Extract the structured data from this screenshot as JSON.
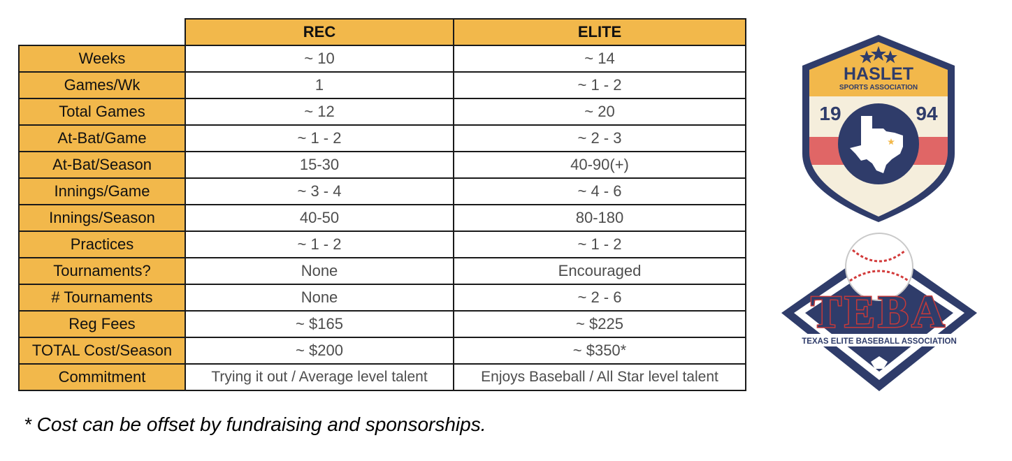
{
  "table": {
    "columns": [
      "REC",
      "ELITE"
    ],
    "rows": [
      {
        "label": "Weeks",
        "rec": "~ 10",
        "elite": "~ 14"
      },
      {
        "label": "Games/Wk",
        "rec": "1",
        "elite": "~ 1 - 2"
      },
      {
        "label": "Total Games",
        "rec": "~ 12",
        "elite": "~ 20"
      },
      {
        "label": "At-Bat/Game",
        "rec": "~ 1 - 2",
        "elite": "~ 2 - 3"
      },
      {
        "label": "At-Bat/Season",
        "rec": "15-30",
        "elite": "40-90(+)"
      },
      {
        "label": "Innings/Game",
        "rec": "~ 3 - 4",
        "elite": "~ 4 - 6"
      },
      {
        "label": "Innings/Season",
        "rec": "40-50",
        "elite": "80-180"
      },
      {
        "label": "Practices",
        "rec": "~ 1 - 2",
        "elite": "~ 1 - 2"
      },
      {
        "label": "Tournaments?",
        "rec": "None",
        "elite": "Encouraged"
      },
      {
        "label": "# Tournaments",
        "rec": "None",
        "elite": "~ 2 - 6"
      },
      {
        "label": "Reg Fees",
        "rec": "~ $165",
        "elite": "~ $225"
      },
      {
        "label": "TOTAL Cost/Season",
        "rec": "~ $200",
        "elite": "~ $350*"
      },
      {
        "label": "Commitment",
        "rec": "Trying it out / Average level talent",
        "elite": "Enjoys Baseball / All Star level talent"
      }
    ]
  },
  "footnote": "* Cost can be offset by fundraising and sponsorships.",
  "logos": {
    "haslet": {
      "title": "HASLET",
      "subtitle": "SPORTS ASSOCIATION",
      "year_left": "19",
      "year_right": "94"
    },
    "teba": {
      "title": "TEBA",
      "subtitle": "TEXAS ELITE BASEBALL ASSOCIATION"
    }
  },
  "colors": {
    "header": "#f2b84b",
    "navy": "#2f3c6a",
    "red": "#e06666",
    "cream": "#f5eedc"
  }
}
